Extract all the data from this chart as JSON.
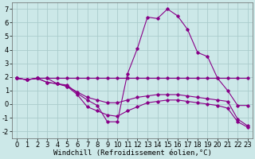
{
  "bg_color": "#cce8e8",
  "grid_color": "#aacccc",
  "line_color": "#880088",
  "xlabel": "Windchill (Refroidissement éolien,°C)",
  "xlabel_fontsize": 6.5,
  "tick_fontsize": 6,
  "xlim": [
    -0.5,
    23.5
  ],
  "ylim": [
    -2.5,
    7.5
  ],
  "yticks": [
    -2,
    -1,
    0,
    1,
    2,
    3,
    4,
    5,
    6,
    7
  ],
  "xticks": [
    0,
    1,
    2,
    3,
    4,
    5,
    6,
    7,
    8,
    9,
    10,
    11,
    12,
    13,
    14,
    15,
    16,
    17,
    18,
    19,
    20,
    21,
    22,
    23
  ],
  "series": [
    [
      1.9,
      1.8,
      1.9,
      1.9,
      1.9,
      1.9,
      1.9,
      1.9,
      1.9,
      1.9,
      1.9,
      1.9,
      1.9,
      1.9,
      1.9,
      1.9,
      1.9,
      1.9,
      1.9,
      1.9,
      1.9,
      1.9,
      1.9,
      1.9
    ],
    [
      1.9,
      1.8,
      1.9,
      1.9,
      1.5,
      1.4,
      0.8,
      0.3,
      -0.1,
      -1.3,
      -1.3,
      2.2,
      4.1,
      6.4,
      6.3,
      7.0,
      6.5,
      5.5,
      3.8,
      3.5,
      1.9,
      1.0,
      -0.1,
      -0.1
    ],
    [
      1.9,
      1.8,
      1.9,
      1.6,
      1.5,
      1.3,
      0.7,
      -0.2,
      -0.5,
      -0.8,
      -0.9,
      -0.5,
      -0.2,
      0.1,
      0.2,
      0.3,
      0.3,
      0.2,
      0.1,
      0.0,
      -0.1,
      -0.3,
      -1.3,
      -1.7
    ],
    [
      1.9,
      1.8,
      1.9,
      1.6,
      1.5,
      1.3,
      0.9,
      0.5,
      0.3,
      0.1,
      0.1,
      0.3,
      0.5,
      0.6,
      0.7,
      0.7,
      0.7,
      0.6,
      0.5,
      0.4,
      0.3,
      0.2,
      -1.1,
      -1.6
    ]
  ]
}
